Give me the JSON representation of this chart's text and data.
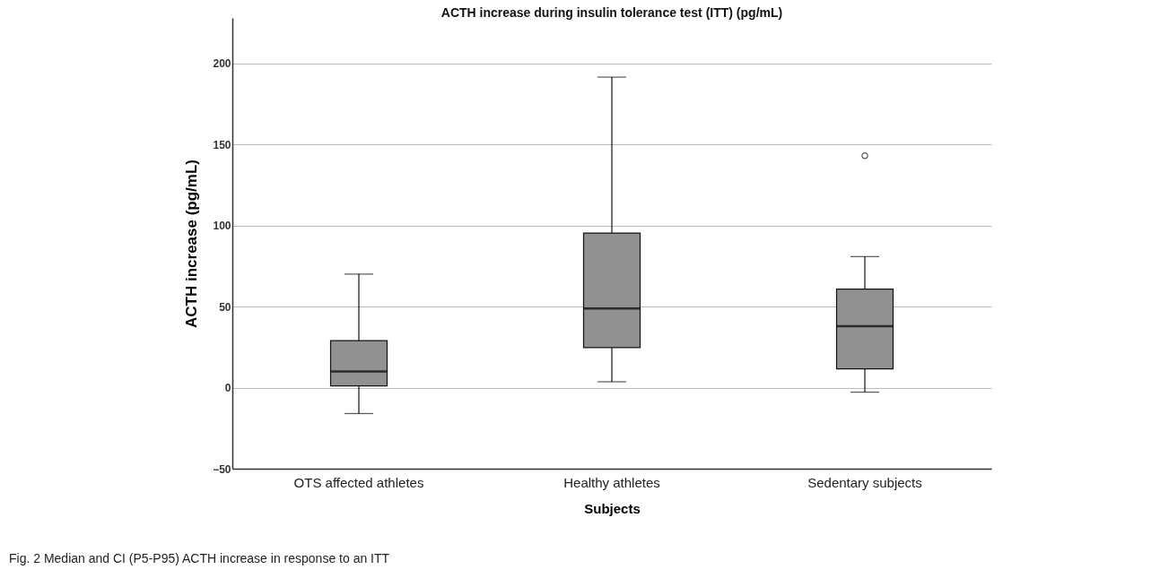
{
  "chart_data": {
    "type": "box",
    "title": "ACTH increase during insulin tolerance test (ITT) (pg/mL)",
    "xlabel": "Subjects",
    "ylabel": "ACTH increase (pg/mL)",
    "categories": [
      "OTS affected athletes",
      "Healthy athletes",
      "Sedentary subjects"
    ],
    "color": "#919191",
    "boxes": [
      {
        "low": -16,
        "q1": 1,
        "median": 10,
        "q3": 29,
        "high": 70
      },
      {
        "low": 3.6,
        "q1": 24.7,
        "median": 48.8,
        "q3": 95.3,
        "high": 191.5
      },
      {
        "low": -2.8,
        "q1": 11.5,
        "median": 37.9,
        "q3": 60.7,
        "high": 80.8,
        "outliers": [
          143
        ]
      }
    ],
    "ylim": [
      -50,
      228
    ],
    "yticks": [
      -50,
      0,
      50,
      100,
      150,
      200
    ],
    "grid": "y",
    "annotations": [
      "Fig. 2 Median and CI (P5-P95) ACTH increase in response to an ITT"
    ]
  }
}
